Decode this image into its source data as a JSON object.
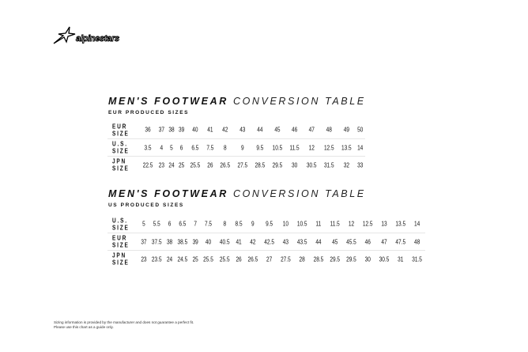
{
  "brand": "alpinestars",
  "tables": [
    {
      "title_bold": "MEN'S FOOTWEAR",
      "title_light": "CONVERSION TABLE",
      "subtitle": "EUR PRODUCED SIZES",
      "rows": [
        {
          "label": [
            "EUR",
            "SIZE"
          ],
          "values": [
            "36",
            "37",
            "38",
            "39",
            "40",
            "41",
            "42",
            "43",
            "44",
            "45",
            "46",
            "47",
            "48",
            "49",
            "50"
          ]
        },
        {
          "label": [
            "U.S.",
            "SIZE"
          ],
          "values": [
            "3.5",
            "4",
            "5",
            "6",
            "6.5",
            "7.5",
            "8",
            "9",
            "9.5",
            "10.5",
            "11.5",
            "12",
            "12.5",
            "13.5",
            "14"
          ]
        },
        {
          "label": [
            "JPN",
            "SIZE"
          ],
          "values": [
            "22.5",
            "23",
            "24",
            "25",
            "25.5",
            "26",
            "26.5",
            "27.5",
            "28.5",
            "29.5",
            "30",
            "30.5",
            "31.5",
            "32",
            "33"
          ]
        }
      ]
    },
    {
      "title_bold": "MEN'S FOOTWEAR",
      "title_light": "CONVERSION TABLE",
      "subtitle": "US PRODUCED SIZES",
      "rows": [
        {
          "label": [
            "U.S.",
            "SIZE"
          ],
          "values": [
            "5",
            "5.5",
            "6",
            "6.5",
            "7",
            "7.5",
            "8",
            "8.5",
            "9",
            "9.5",
            "10",
            "10.5",
            "11",
            "11.5",
            "12",
            "12.5",
            "13",
            "13.5",
            "14"
          ]
        },
        {
          "label": [
            "EUR",
            "SIZE"
          ],
          "values": [
            "37",
            "37.5",
            "38",
            "38.5",
            "39",
            "40",
            "40.5",
            "41",
            "42",
            "42.5",
            "43",
            "43.5",
            "44",
            "45",
            "45.5",
            "46",
            "47",
            "47.5",
            "48"
          ]
        },
        {
          "label": [
            "JPN",
            "SIZE"
          ],
          "values": [
            "23",
            "23.5",
            "24",
            "24.5",
            "25",
            "25.5",
            "25.5",
            "26",
            "26.5",
            "27",
            "27.5",
            "28",
            "28.5",
            "29.5",
            "29.5",
            "30",
            "30.5",
            "31",
            "31.5"
          ]
        }
      ]
    }
  ],
  "footer": [
    "Sizing information is provided by the manufacturer and does not guarantee a perfect fit.",
    "Please use this chart as a guide only."
  ]
}
